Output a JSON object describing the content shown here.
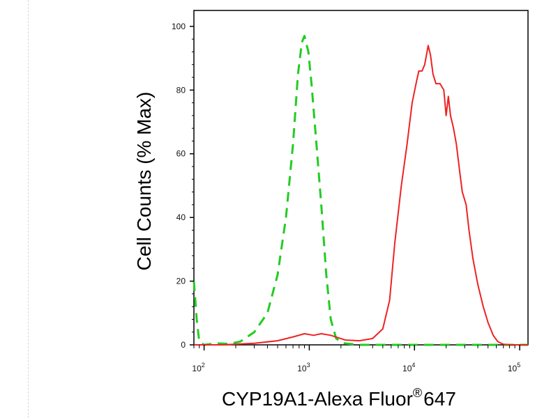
{
  "chart_data": {
    "type": "line",
    "title": "",
    "xlabel": "CYP19A1-Alexa Fluor",
    "xlabel_superscript": "®",
    "xlabel_suffix": "647",
    "ylabel": "Cell Counts (% Max)",
    "x_scale": "log",
    "xlim": [
      80,
      120000
    ],
    "ylim": [
      0,
      105
    ],
    "x_ticks": [
      {
        "value": 100,
        "base": "10",
        "exp": "2"
      },
      {
        "value": 1000,
        "base": "10",
        "exp": "3"
      },
      {
        "value": 10000,
        "base": "10",
        "exp": "4"
      },
      {
        "value": 100000,
        "base": "10",
        "exp": "5"
      }
    ],
    "y_ticks": [
      0,
      20,
      40,
      60,
      80,
      100
    ],
    "grid": false,
    "legend": "none",
    "series": [
      {
        "color": "#22cc22",
        "style": "dashed",
        "points": [
          [
            80,
            20
          ],
          [
            85,
            8
          ],
          [
            90,
            1
          ],
          [
            100,
            0
          ],
          [
            130,
            0.5
          ],
          [
            170,
            0.3
          ],
          [
            220,
            1
          ],
          [
            300,
            4
          ],
          [
            400,
            10
          ],
          [
            500,
            22
          ],
          [
            600,
            40
          ],
          [
            700,
            63
          ],
          [
            780,
            85
          ],
          [
            850,
            95
          ],
          [
            900,
            97
          ],
          [
            980,
            92
          ],
          [
            1050,
            82
          ],
          [
            1150,
            66
          ],
          [
            1300,
            44
          ],
          [
            1450,
            22
          ],
          [
            1600,
            8
          ],
          [
            1800,
            2
          ],
          [
            2100,
            0.5
          ],
          [
            3000,
            0
          ],
          [
            10000,
            0
          ],
          [
            100000,
            0
          ],
          [
            120000,
            0
          ]
        ]
      },
      {
        "color": "#ee2222",
        "style": "solid",
        "points": [
          [
            80,
            0
          ],
          [
            100,
            0
          ],
          [
            150,
            0
          ],
          [
            300,
            0.5
          ],
          [
            500,
            1.3
          ],
          [
            700,
            2.5
          ],
          [
            900,
            3.5
          ],
          [
            1100,
            3
          ],
          [
            1300,
            3.5
          ],
          [
            1600,
            3
          ],
          [
            2200,
            1.5
          ],
          [
            3000,
            1.3
          ],
          [
            4000,
            2
          ],
          [
            5000,
            5
          ],
          [
            5800,
            14
          ],
          [
            6500,
            32
          ],
          [
            7500,
            50
          ],
          [
            8500,
            63
          ],
          [
            9500,
            76
          ],
          [
            10500,
            83
          ],
          [
            11000,
            86
          ],
          [
            11800,
            86
          ],
          [
            12500,
            88
          ],
          [
            13500,
            94
          ],
          [
            14200,
            91
          ],
          [
            15000,
            85
          ],
          [
            16000,
            82
          ],
          [
            17500,
            82
          ],
          [
            19000,
            80
          ],
          [
            20000,
            72
          ],
          [
            21000,
            78
          ],
          [
            22000,
            72
          ],
          [
            23500,
            68
          ],
          [
            25000,
            63
          ],
          [
            27000,
            54
          ],
          [
            28500,
            48
          ],
          [
            31000,
            44
          ],
          [
            33000,
            36
          ],
          [
            36000,
            27
          ],
          [
            40000,
            19
          ],
          [
            45000,
            12
          ],
          [
            50000,
            7
          ],
          [
            56000,
            3
          ],
          [
            62000,
            1
          ],
          [
            70000,
            0.2
          ],
          [
            85000,
            0
          ],
          [
            120000,
            0
          ]
        ]
      }
    ]
  }
}
